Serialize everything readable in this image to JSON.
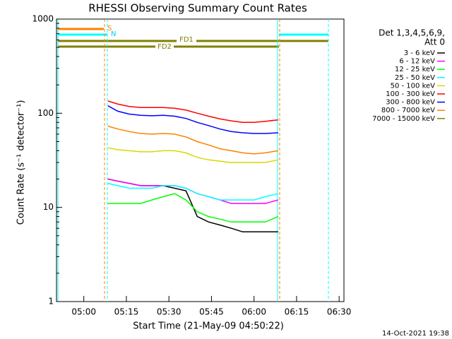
{
  "chart_data": {
    "type": "line",
    "title": "RHESSI Observing Summary Count Rates",
    "x_label": "Start Time (21-May-09 04:50:22)",
    "y_label": "Count Rate (s⁻¹ detector⁻¹)",
    "timestamp": "14-Oct-2021 19:38",
    "legend_title": [
      "Det 1,3,4,5,6,9,",
      "Att 0"
    ],
    "annotations": [
      "S",
      "N",
      "FD1",
      "FD2"
    ],
    "log_y": true,
    "xlim": [
      290.37,
      391.7
    ],
    "ylim": [
      1,
      1000
    ],
    "xticks": [
      {
        "value": 300,
        "label": "05:00"
      },
      {
        "value": 315,
        "label": "05:15"
      },
      {
        "value": 330,
        "label": "05:30"
      },
      {
        "value": 345,
        "label": "05:45"
      },
      {
        "value": 360,
        "label": "06:00"
      },
      {
        "value": 375,
        "label": "06:15"
      },
      {
        "value": 390,
        "label": "06:30"
      }
    ],
    "yticks": [
      1,
      10,
      100,
      1000
    ],
    "x": [
      308.5,
      312,
      316,
      320,
      324,
      328,
      332,
      336,
      340,
      344,
      348,
      352,
      356,
      360,
      364,
      368.5
    ],
    "series": [
      {
        "name": "3 - 6 keV",
        "color": "#000000",
        "values": [
          20,
          19,
          18,
          17,
          17,
          17,
          16,
          15,
          8,
          7,
          6.5,
          6,
          5.5,
          5.5,
          5.5,
          5.5
        ]
      },
      {
        "name": "6 - 12 keV",
        "color": "#ff00ff",
        "values": [
          20,
          19,
          18,
          17,
          17,
          17,
          17,
          16,
          14,
          13,
          12,
          11,
          11,
          11,
          11,
          12
        ]
      },
      {
        "name": "12 - 25 keV",
        "color": "#00ff00",
        "values": [
          11,
          11,
          11,
          11,
          12,
          13,
          14,
          12,
          9,
          8,
          7.5,
          7,
          7,
          7,
          7,
          8
        ]
      },
      {
        "name": "25 - 50 keV",
        "color": "#00ffff",
        "values": [
          18,
          17,
          16,
          16,
          16,
          17,
          17,
          16,
          14,
          13,
          12,
          12,
          12,
          12,
          13,
          14
        ]
      },
      {
        "name": "50 - 100 keV",
        "color": "#d8d800",
        "values": [
          43,
          41,
          40,
          39,
          39,
          40,
          40,
          38,
          34,
          32,
          31,
          30,
          30,
          30,
          30,
          32
        ]
      },
      {
        "name": "100 - 300 keV",
        "color": "#ff0000",
        "values": [
          135,
          125,
          118,
          115,
          115,
          115,
          113,
          108,
          100,
          93,
          87,
          83,
          80,
          80,
          82,
          85
        ]
      },
      {
        "name": "300 - 800 keV",
        "color": "#0000ff",
        "values": [
          120,
          105,
          98,
          95,
          94,
          95,
          93,
          88,
          80,
          74,
          68,
          64,
          62,
          61,
          61,
          62
        ]
      },
      {
        "name": "800 - 7000 keV",
        "color": "#ff8000",
        "values": [
          73,
          68,
          64,
          61,
          60,
          61,
          60,
          56,
          50,
          46,
          42,
          40,
          38,
          37,
          38,
          40
        ]
      },
      {
        "name": "7000 - 15000 keV",
        "color": "#808000",
        "values": [
          null,
          null,
          null,
          null,
          null,
          null,
          null,
          null,
          null,
          null,
          null,
          null,
          null,
          null,
          null,
          null
        ]
      }
    ]
  }
}
